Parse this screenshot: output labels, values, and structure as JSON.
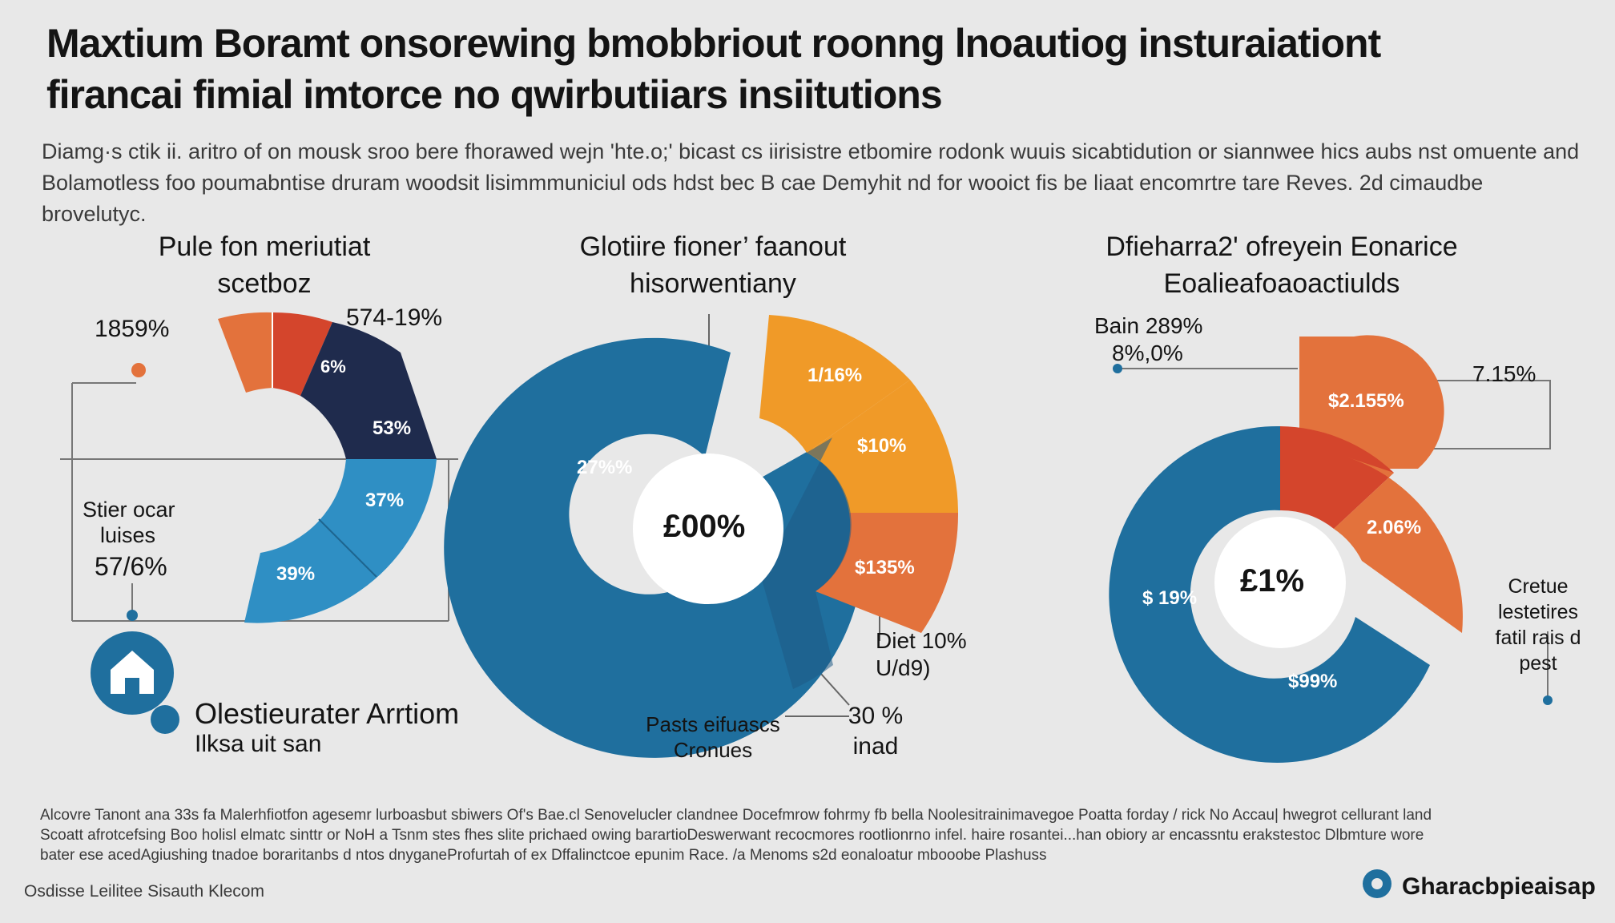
{
  "title": {
    "line1": "Maxtium  Boramt onsorewing bmobbriout roonng lnoautiog insturaiationt",
    "line2": "firancai fimial imtorce no qwirbutiiars insiitutions"
  },
  "intro": {
    "line1": "Diamg·s ctik  ii. aritro of on mousk  sroo bere fhorawed wejn 'hte.o;' bicast  cs iirisistre etbomire rodonk  wuuis  sicabtidution or siannwee hics aubs nst omuente and",
    "line2": "Bolamotless foo poumabntise druram  woodsit lisimmmuniciul ods  hdst bec B  cae Demyhit nd  for wooict fis be liaat encomrtre tare Reves. 2d  cimaudbe brovelutyc."
  },
  "charts": [
    {
      "title_line1": "Pule fon meriutiat",
      "title_line2": "scetboz",
      "slice_labels": [
        "6%",
        "53%",
        "37%",
        "39%"
      ],
      "callouts": {
        "top_left": "1859%",
        "top_right": "574-19%",
        "side_line1": "Stier ocar",
        "side_line2": "luises",
        "side_pct": "57/6%"
      }
    },
    {
      "title_line1": "Glotiire fioner’ faanout",
      "title_line2": "hisorwentiany",
      "center": "£00%",
      "slice_labels": [
        "1/16%",
        "$10%",
        "$135%",
        "27%%"
      ],
      "callouts": {
        "right_line1": "Diet 10%",
        "right_line2": "U/d9)",
        "bottom_line1": "Pasts eifuascs",
        "bottom_line2": "Cronues",
        "bottom_pct": "30 %",
        "bottom_word": "inad"
      }
    },
    {
      "title_line1": "Dfieharra2' ofreyein Eonarice",
      "title_line2": "Eoalieafoaoactiulds",
      "center": "£1%",
      "slice_labels": [
        "$2.155%",
        "2.06%",
        "$ 19%",
        "$99%"
      ],
      "callouts": {
        "top_left_line1": "Bain 289%",
        "top_left_line2": "8%,0%",
        "top_right": "7.15%",
        "right_line1": "Cretue",
        "right_line2": "lestetires",
        "right_line3": "fatil rais d",
        "right_line4": "pest"
      }
    }
  ],
  "bottom_icon": {
    "name": "house-icon",
    "label_line1": "Olestieurater Arrtiom",
    "label_line2": "Ilksa uit san"
  },
  "footer": {
    "line1": "Alcovre Tanont  ana 33s fa Malerhfiotfon agesemr  lurboasbut sbiwers Of's Bae.cl  Senovelucler clandnee Docefmrow fohrmy fb bella Noolesitrainimavegoe Poatta forday / rick No Accau|  hwegrot cellurant land",
    "line2": "Scoatt afrotcefsing Boo holisl elmatc sinttr or NoH a Tsnm stes fhes slite prichaed owing barartioDeswerwant recocmores rootlionrno infel. haire rosantei...han obiory ar encassntu erakstestoc Dlbmture wore",
    "line3": "bater ese acedAgiushing tnadoe boraritanbs d ntos dnyganeProfurtah of ex Dffalinctcoe epunim Race. /a  Menoms s2d  eonaloatur mbooobe Plashuss"
  },
  "credit": "Osdisse Leilitee Sisauth Klecom",
  "brand": "Gharacbpieaisap",
  "colors": {
    "navy": "#1f2b4d",
    "blue": "#1f6f9e",
    "sky": "#2f8fc4",
    "red": "#d4452c",
    "orange": "#e3723c",
    "amber": "#f09a28",
    "bg": "#e8e8e8"
  }
}
